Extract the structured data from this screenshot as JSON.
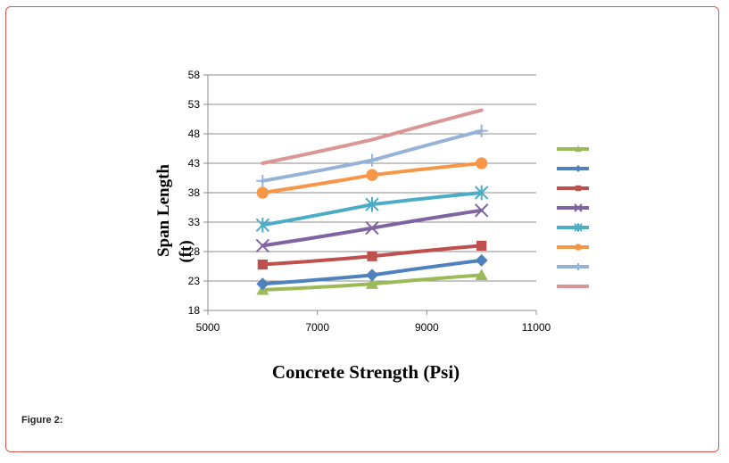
{
  "figure": {
    "caption": "Figure 2:"
  },
  "chart_data": {
    "type": "line",
    "title": "",
    "xlabel": "Concrete Strength (Psi)",
    "ylabel": "Span Length",
    "ylabel_unit": "(ft)",
    "xlim": [
      5000,
      11000
    ],
    "ylim": [
      18,
      58
    ],
    "xticks": [
      5000,
      7000,
      9000,
      11000
    ],
    "yticks": [
      18,
      23,
      28,
      33,
      38,
      43,
      48,
      53,
      58
    ],
    "grid": "horizontal",
    "legend_position": "right",
    "series": [
      {
        "color": "#9bbb59",
        "marker": "triangle",
        "x": [
          6000,
          8000,
          10000
        ],
        "y": [
          21.5,
          22.5,
          24
        ]
      },
      {
        "color": "#4f81bd",
        "marker": "diamond",
        "x": [
          6000,
          8000,
          10000
        ],
        "y": [
          22.5,
          24,
          26.5
        ]
      },
      {
        "color": "#c0504d",
        "marker": "square",
        "x": [
          6000,
          8000,
          10000
        ],
        "y": [
          25.8,
          27.2,
          29
        ]
      },
      {
        "color": "#8064a2",
        "marker": "x",
        "x": [
          6000,
          8000,
          10000
        ],
        "y": [
          29,
          32,
          35
        ]
      },
      {
        "color": "#4bacc6",
        "marker": "star",
        "x": [
          6000,
          8000,
          10000
        ],
        "y": [
          32.5,
          36,
          38
        ]
      },
      {
        "color": "#f79646",
        "marker": "circle",
        "x": [
          6000,
          8000,
          10000
        ],
        "y": [
          38,
          41,
          43
        ]
      },
      {
        "color": "#95b3d7",
        "marker": "plus",
        "x": [
          6000,
          8000,
          10000
        ],
        "y": [
          40,
          43.5,
          48.5
        ]
      },
      {
        "color": "#d99694",
        "marker": "none",
        "x": [
          6000,
          8000,
          10000
        ],
        "y": [
          43,
          47,
          52
        ]
      }
    ]
  }
}
